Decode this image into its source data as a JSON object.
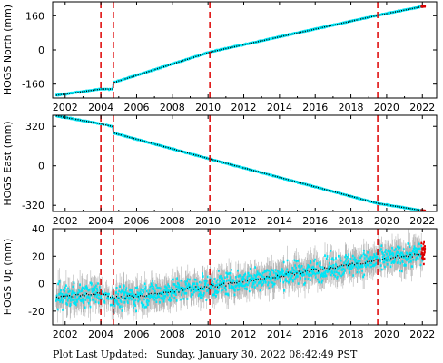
{
  "footer": {
    "prefix": "Plot Last Updated:",
    "timestamp": "Sunday, January 30, 2022 08:42:49 PST"
  },
  "colors": {
    "data": "#00e5f5",
    "error_bars": "#b4b4b4",
    "running_mean": "#000000",
    "recent": "#dd0000",
    "event_lines": "#dd0000"
  },
  "chart_data": [
    {
      "type": "scatter",
      "ylabel": "HOGS North (mm)",
      "xlim": [
        2001.3,
        2022.8
      ],
      "ylim": [
        -225,
        225
      ],
      "yticks": [
        -160,
        0,
        160
      ],
      "xticks": [
        2002,
        2004,
        2006,
        2008,
        2010,
        2012,
        2014,
        2016,
        2018,
        2020,
        2022
      ],
      "event_lines": [
        2004.0,
        2004.7,
        2010.1,
        2019.5
      ],
      "trend": [
        [
          2001.5,
          -212
        ],
        [
          2004.0,
          -183
        ],
        [
          2004.65,
          -183
        ],
        [
          2004.72,
          -152
        ],
        [
          2010.1,
          -10
        ],
        [
          2019.5,
          162
        ],
        [
          2022.1,
          205
        ]
      ],
      "scatter": 1.5,
      "error": 2.5,
      "grid": false
    },
    {
      "type": "scatter",
      "ylabel": "HOGS East (mm)",
      "xlim": [
        2001.3,
        2022.8
      ],
      "ylim": [
        -370,
        410
      ],
      "yticks": [
        -320,
        0,
        320
      ],
      "xticks": [
        2002,
        2004,
        2006,
        2008,
        2010,
        2012,
        2014,
        2016,
        2018,
        2020,
        2022
      ],
      "event_lines": [
        2004.0,
        2004.7,
        2010.1,
        2019.5
      ],
      "trend": [
        [
          2001.5,
          405
        ],
        [
          2004.0,
          340
        ],
        [
          2004.65,
          318
        ],
        [
          2004.72,
          265
        ],
        [
          2010.1,
          55
        ],
        [
          2019.5,
          -305
        ],
        [
          2022.1,
          -365
        ]
      ],
      "scatter": 2.5,
      "error": 4,
      "grid": false
    },
    {
      "type": "scatter",
      "ylabel": "HOGS Up (mm)",
      "xlim": [
        2001.3,
        2022.8
      ],
      "ylim": [
        -30,
        40
      ],
      "yticks": [
        -20,
        0,
        20,
        40
      ],
      "xticks": [
        2002,
        2004,
        2006,
        2008,
        2010,
        2012,
        2014,
        2016,
        2018,
        2020,
        2022
      ],
      "event_lines": [
        2004.0,
        2004.7,
        2010.1,
        2019.5
      ],
      "trend": [
        [
          2001.5,
          -10
        ],
        [
          2004.0,
          -7
        ],
        [
          2004.7,
          -11
        ],
        [
          2010.1,
          -2
        ],
        [
          2019.5,
          17
        ],
        [
          2022.1,
          22
        ]
      ],
      "scatter": 6,
      "error": 7,
      "grid": false
    }
  ]
}
